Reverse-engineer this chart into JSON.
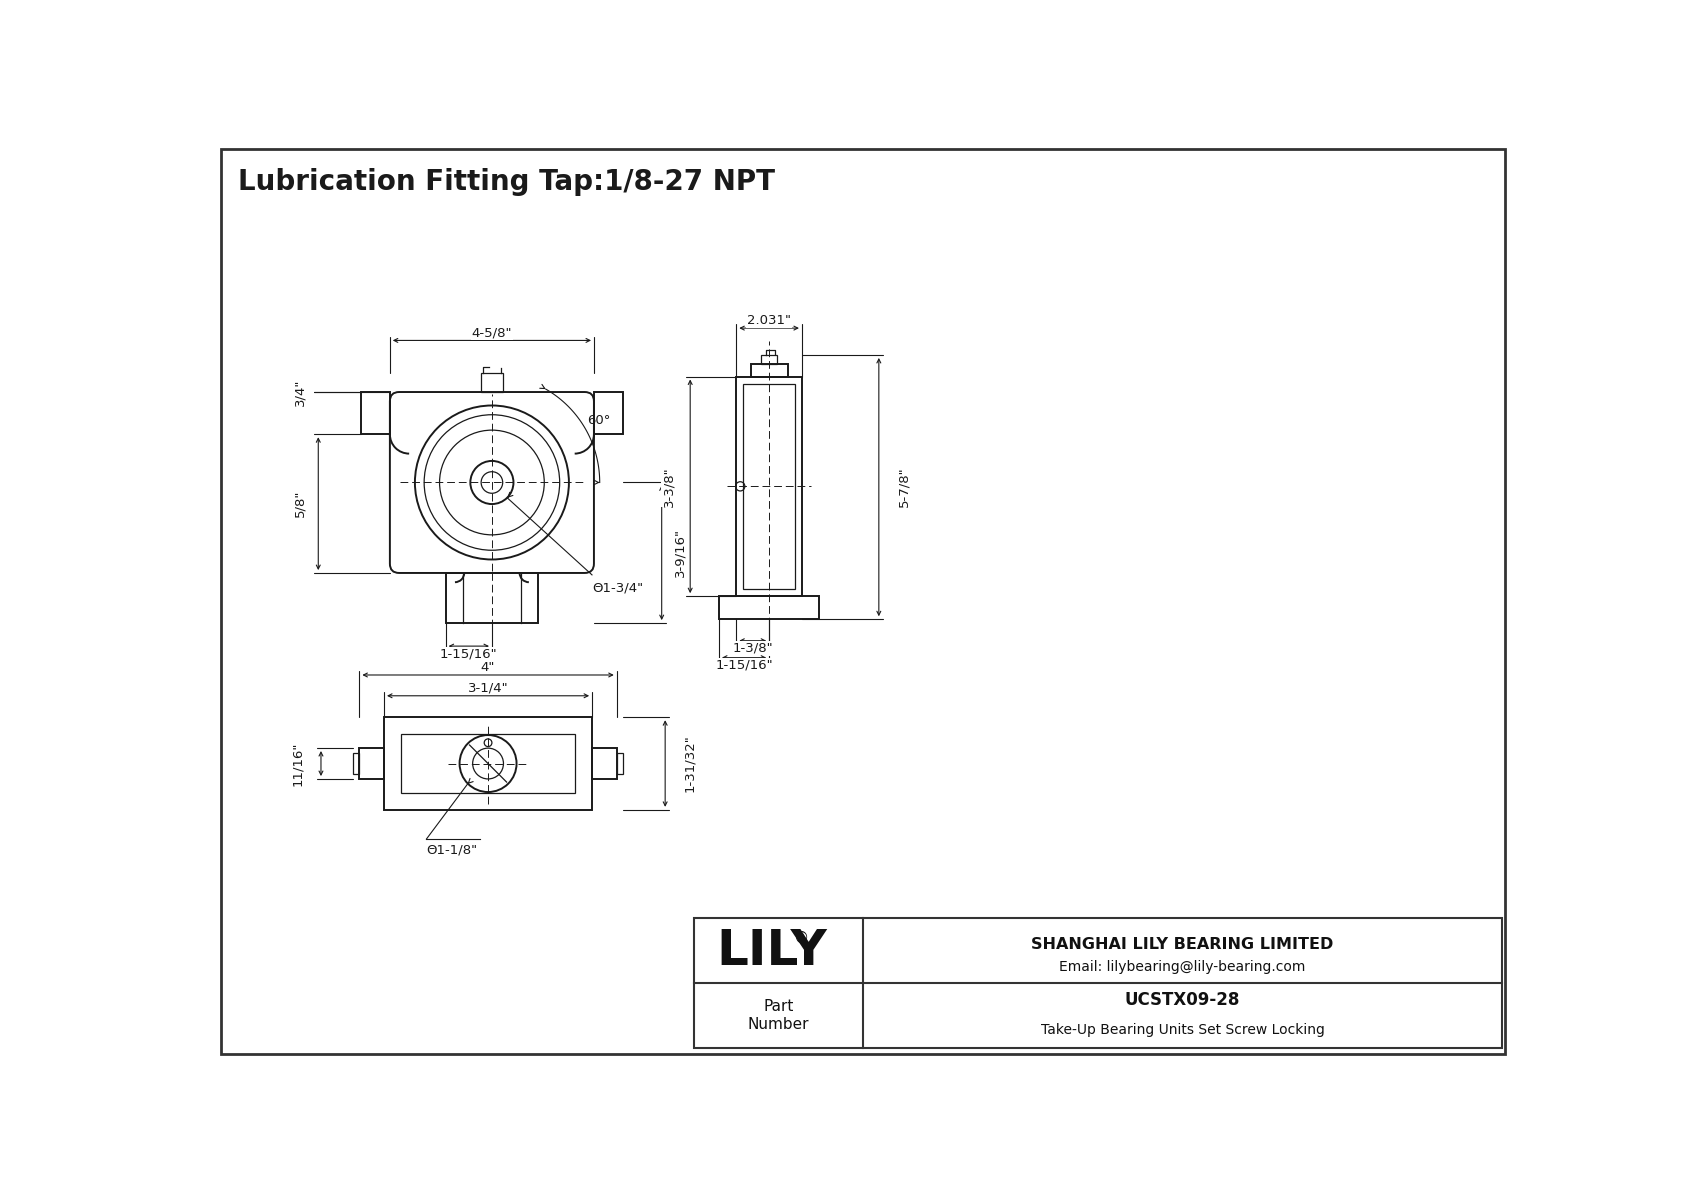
{
  "title": "Lubrication Fitting Tap:1/8-27 NPT",
  "bg_color": "#ffffff",
  "line_color": "#1a1a1a",
  "dim_color": "#1a1a1a",
  "border_color": "#333333",
  "title_fontsize": 20,
  "dim_fontsize": 9.5,
  "logo_text": "LILY",
  "logo_reg": "®",
  "company": "SHANGHAI LILY BEARING LIMITED",
  "email": "Email: lilybearing@lily-bearing.com",
  "part_label": "Part\nNumber",
  "part_number": "UCSTX09-28",
  "part_desc": "Take-Up Bearing Units Set Screw Locking",
  "front_dims": {
    "width_top": "4-5/8\"",
    "height_right": "3-9/16\"",
    "height_left_top": "3/4\"",
    "height_left_bot": "5/8\"",
    "width_bot": "1-15/16\"",
    "bore": "Θ1-3/4\"",
    "angle": "60°"
  },
  "side_dims": {
    "width_top": "2.031\"",
    "height_left": "3-3/8\"",
    "height_right": "5-7/8\"",
    "width_bot1": "1-3/8\"",
    "width_bot2": "1-15/16\""
  },
  "bottom_dims": {
    "width_outer": "4\"",
    "width_inner": "3-1/4\"",
    "height": "1-31/32\"",
    "height_left": "11/16\"",
    "bore": "Θ1-1/8\""
  }
}
